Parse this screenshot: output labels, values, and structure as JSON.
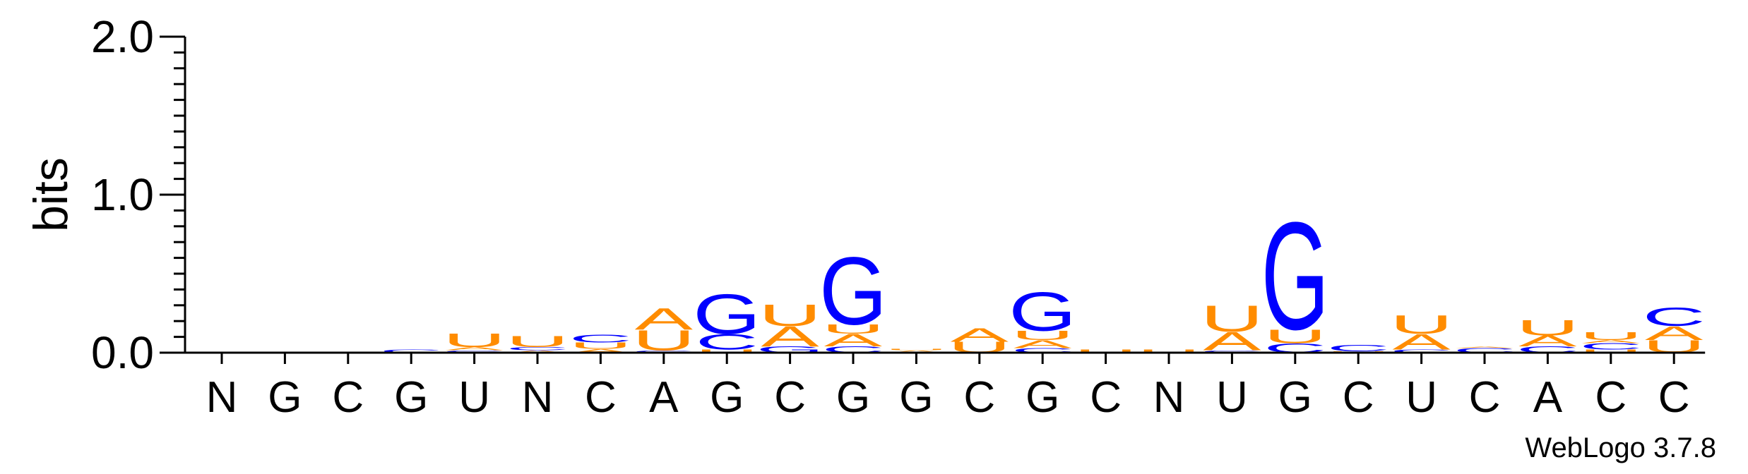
{
  "chart_data": {
    "type": "sequence-logo",
    "ylabel": "bits",
    "xlabel": "",
    "ylim": [
      0,
      2.0
    ],
    "yticks": [
      {
        "value": 0,
        "label": "0.0"
      },
      {
        "value": 1,
        "label": "1.0"
      },
      {
        "value": 2,
        "label": "2.0"
      }
    ],
    "colors": {
      "A": "#ff8c00",
      "U": "#ff8c00",
      "C": "#0000ff",
      "G": "#0000ff"
    },
    "positions": [
      {
        "label": "N",
        "stack": []
      },
      {
        "label": "G",
        "stack": []
      },
      {
        "label": "C",
        "stack": []
      },
      {
        "label": "G",
        "stack": [
          {
            "base": "C",
            "bits": 0.02
          }
        ]
      },
      {
        "label": "U",
        "stack": [
          {
            "base": "C",
            "bits": 0.015
          },
          {
            "base": "A",
            "bits": 0.02
          },
          {
            "base": "U",
            "bits": 0.09
          }
        ]
      },
      {
        "label": "N",
        "stack": [
          {
            "base": "A",
            "bits": 0.015
          },
          {
            "base": "C",
            "bits": 0.02
          },
          {
            "base": "U",
            "bits": 0.07
          }
        ]
      },
      {
        "label": "C",
        "stack": [
          {
            "base": "A",
            "bits": 0.025
          },
          {
            "base": "U",
            "bits": 0.04
          },
          {
            "base": "C",
            "bits": 0.05
          }
        ]
      },
      {
        "label": "A",
        "stack": [
          {
            "base": "C",
            "bits": 0.015
          },
          {
            "base": "U",
            "bits": 0.13
          },
          {
            "base": "A",
            "bits": 0.14
          }
        ]
      },
      {
        "label": "G",
        "stack": [
          {
            "base": "U",
            "bits": 0.02
          },
          {
            "base": "C",
            "bits": 0.1
          },
          {
            "base": "G",
            "bits": 0.26
          }
        ]
      },
      {
        "label": "C",
        "stack": [
          {
            "base": "G",
            "bits": 0.04
          },
          {
            "base": "A",
            "bits": 0.13
          },
          {
            "base": "U",
            "bits": 0.14
          }
        ]
      },
      {
        "label": "G",
        "stack": [
          {
            "base": "C",
            "bits": 0.04
          },
          {
            "base": "A",
            "bits": 0.08
          },
          {
            "base": "U",
            "bits": 0.06
          },
          {
            "base": "G",
            "bits": 0.44
          }
        ]
      },
      {
        "label": "G",
        "stack": [
          {
            "base": "A",
            "bits": 0.015
          },
          {
            "base": "U",
            "bits": 0.01
          }
        ]
      },
      {
        "label": "C",
        "stack": [
          {
            "base": "U",
            "bits": 0.07
          },
          {
            "base": "A",
            "bits": 0.09
          }
        ]
      },
      {
        "label": "G",
        "stack": [
          {
            "base": "C",
            "bits": 0.03
          },
          {
            "base": "A",
            "bits": 0.05
          },
          {
            "base": "U",
            "bits": 0.06
          },
          {
            "base": "G",
            "bits": 0.25
          }
        ]
      },
      {
        "label": "C",
        "stack": [
          {
            "base": "U",
            "bits": 0.02
          }
        ]
      },
      {
        "label": "N",
        "stack": [
          {
            "base": "U",
            "bits": 0.02
          }
        ]
      },
      {
        "label": "U",
        "stack": [
          {
            "base": "C",
            "bits": 0.015
          },
          {
            "base": "A",
            "bits": 0.12
          },
          {
            "base": "U",
            "bits": 0.17
          }
        ]
      },
      {
        "label": "G",
        "stack": [
          {
            "base": "C",
            "bits": 0.06
          },
          {
            "base": "U",
            "bits": 0.09
          },
          {
            "base": "G",
            "bits": 0.7
          }
        ]
      },
      {
        "label": "C",
        "stack": [
          {
            "base": "U",
            "bits": 0.01
          },
          {
            "base": "C",
            "bits": 0.04
          }
        ]
      },
      {
        "label": "U",
        "stack": [
          {
            "base": "C",
            "bits": 0.02
          },
          {
            "base": "A",
            "bits": 0.1
          },
          {
            "base": "U",
            "bits": 0.12
          }
        ]
      },
      {
        "label": "C",
        "stack": [
          {
            "base": "C",
            "bits": 0.03
          },
          {
            "base": "A",
            "bits": 0.01
          }
        ]
      },
      {
        "label": "A",
        "stack": [
          {
            "base": "C",
            "bits": 0.04
          },
          {
            "base": "A",
            "bits": 0.07
          },
          {
            "base": "U",
            "bits": 0.1
          }
        ]
      },
      {
        "label": "C",
        "stack": [
          {
            "base": "U",
            "bits": 0.02
          },
          {
            "base": "C",
            "bits": 0.04
          },
          {
            "base": "A",
            "bits": 0.02
          },
          {
            "base": "U",
            "bits": 0.05
          }
        ]
      },
      {
        "label": "C",
        "stack": [
          {
            "base": "U",
            "bits": 0.08
          },
          {
            "base": "A",
            "bits": 0.09
          },
          {
            "base": "C",
            "bits": 0.12
          }
        ]
      }
    ]
  },
  "footer": {
    "version_label": "WebLogo 3.7.8"
  }
}
